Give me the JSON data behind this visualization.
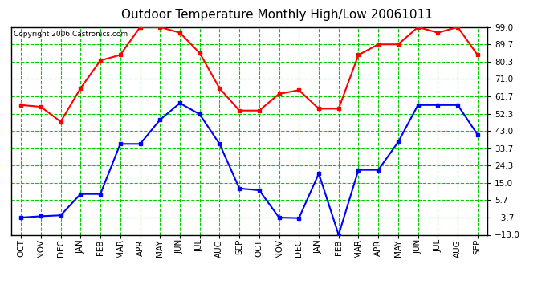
{
  "title": "Outdoor Temperature Monthly High/Low 20061011",
  "copyright": "Copyright 2006 Castronics.com",
  "months": [
    "OCT",
    "NOV",
    "DEC",
    "JAN",
    "FEB",
    "MAR",
    "APR",
    "MAY",
    "JUN",
    "JUL",
    "AUG",
    "SEP",
    "OCT",
    "NOV",
    "DEC",
    "JAN",
    "FEB",
    "MAR",
    "APR",
    "MAY",
    "JUN",
    "JUL",
    "AUG",
    "SEP"
  ],
  "high_data": [
    57.0,
    56.0,
    48.0,
    66.0,
    81.0,
    84.0,
    99.0,
    99.0,
    96.0,
    85.0,
    66.0,
    54.0,
    54.0,
    63.0,
    65.0,
    55.0,
    55.0,
    84.0,
    89.7,
    89.7,
    99.0,
    96.0,
    99.0,
    84.0
  ],
  "low_data": [
    -3.7,
    -3.0,
    -2.5,
    9.0,
    9.0,
    36.0,
    36.0,
    49.0,
    58.0,
    52.0,
    36.0,
    12.0,
    11.0,
    -3.7,
    -4.0,
    20.0,
    -13.0,
    22.0,
    22.0,
    37.0,
    57.0,
    57.0,
    57.0,
    41.0
  ],
  "high_color": "#FF0000",
  "low_color": "#0000FF",
  "bg_color": "#FFFFFF",
  "grid_color": "#00CC00",
  "yticks": [
    99.0,
    89.7,
    80.3,
    71.0,
    61.7,
    52.3,
    43.0,
    33.7,
    24.3,
    15.0,
    5.7,
    -3.7,
    -13.0
  ],
  "ymin": -13.0,
  "ymax": 99.0,
  "title_fontsize": 11,
  "tick_fontsize": 7.5,
  "copyright_fontsize": 6.5
}
